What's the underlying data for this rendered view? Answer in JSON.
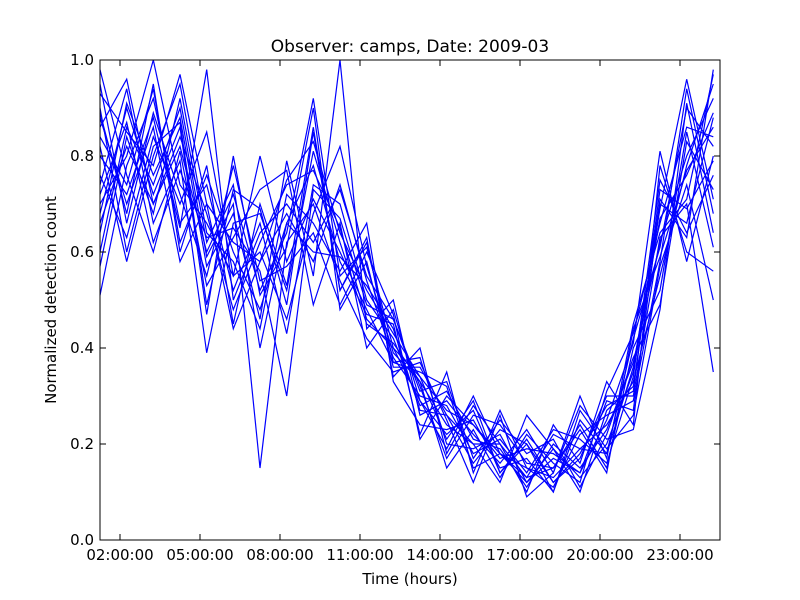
{
  "chart_data": {
    "type": "line",
    "title": "Observer: camps, Date: 2009-03",
    "xlabel": "Time (hours)",
    "ylabel": "Normalized detection count",
    "xlim": [
      1.25,
      24.5
    ],
    "ylim": [
      0.0,
      1.0
    ],
    "x_ticks": [
      2,
      5,
      8,
      11,
      14,
      17,
      20,
      23
    ],
    "x_tick_labels": [
      "02:00:00",
      "05:00:00",
      "08:00:00",
      "11:00:00",
      "14:00:00",
      "17:00:00",
      "20:00:00",
      "23:00:00"
    ],
    "y_ticks": [
      0.0,
      0.2,
      0.4,
      0.6,
      0.8,
      1.0
    ],
    "y_tick_labels": [
      "0.0",
      "0.2",
      "0.4",
      "0.6",
      "0.8",
      "1.0"
    ],
    "line_color": "#0000ff",
    "grid": false,
    "x": [
      1.25,
      2.25,
      3.25,
      4.25,
      5.25,
      6.25,
      7.25,
      8.25,
      9.25,
      10.25,
      11.25,
      12.25,
      13.25,
      14.25,
      15.25,
      16.25,
      17.25,
      18.25,
      19.25,
      20.25,
      21.25,
      22.25,
      23.25,
      24.25
    ],
    "series": [
      {
        "values": [
          0.93,
          0.85,
          0.78,
          0.97,
          0.7,
          0.62,
          0.58,
          0.75,
          0.83,
          0.64,
          0.52,
          0.43,
          0.34,
          0.27,
          0.24,
          0.18,
          0.15,
          0.13,
          0.19,
          0.24,
          0.33,
          0.55,
          0.78,
          0.95
        ]
      },
      {
        "values": [
          0.86,
          0.96,
          0.7,
          0.82,
          0.6,
          0.72,
          0.52,
          0.64,
          0.92,
          0.55,
          0.61,
          0.4,
          0.29,
          0.22,
          0.27,
          0.14,
          0.2,
          0.1,
          0.25,
          0.18,
          0.42,
          0.61,
          0.9,
          0.82
        ]
      },
      {
        "values": [
          0.7,
          0.8,
          1.0,
          0.74,
          0.66,
          0.55,
          0.8,
          0.58,
          0.71,
          0.6,
          0.48,
          0.37,
          0.38,
          0.2,
          0.19,
          0.22,
          0.12,
          0.17,
          0.14,
          0.29,
          0.27,
          0.7,
          0.66,
          0.88
        ]
      },
      {
        "values": [
          0.8,
          0.72,
          0.88,
          0.65,
          0.98,
          0.5,
          0.64,
          0.7,
          0.62,
          0.73,
          0.55,
          0.46,
          0.31,
          0.33,
          0.17,
          0.25,
          0.18,
          0.21,
          0.11,
          0.22,
          0.38,
          0.49,
          0.83,
          0.73
        ]
      },
      {
        "values": [
          0.64,
          0.91,
          0.76,
          0.88,
          0.57,
          0.68,
          0.46,
          0.79,
          0.55,
          1.0,
          0.44,
          0.5,
          0.26,
          0.29,
          0.22,
          0.16,
          0.23,
          0.14,
          0.3,
          0.17,
          0.45,
          0.64,
          0.71,
          0.97
        ]
      },
      {
        "values": [
          0.89,
          0.68,
          0.95,
          0.6,
          0.78,
          0.45,
          0.7,
          0.53,
          0.86,
          0.52,
          0.63,
          0.34,
          0.4,
          0.18,
          0.28,
          0.2,
          0.1,
          0.24,
          0.16,
          0.33,
          0.24,
          0.78,
          0.6,
          0.56
        ]
      },
      {
        "values": [
          0.57,
          0.84,
          0.68,
          0.92,
          0.62,
          0.74,
          0.4,
          0.66,
          0.78,
          0.58,
          0.47,
          0.45,
          0.22,
          0.35,
          0.14,
          0.27,
          0.15,
          0.11,
          0.22,
          0.26,
          0.29,
          0.58,
          0.94,
          0.68
        ]
      },
      {
        "values": [
          0.76,
          0.63,
          0.84,
          0.7,
          0.85,
          0.55,
          0.6,
          0.46,
          0.68,
          0.82,
          0.57,
          0.39,
          0.33,
          0.24,
          0.2,
          0.12,
          0.26,
          0.19,
          0.13,
          0.2,
          0.35,
          0.67,
          0.76,
          0.89
        ]
      },
      {
        "values": [
          0.98,
          0.76,
          0.6,
          0.81,
          0.53,
          0.63,
          0.73,
          0.77,
          0.49,
          0.66,
          0.4,
          0.48,
          0.29,
          0.19,
          0.3,
          0.18,
          0.13,
          0.15,
          0.24,
          0.15,
          0.4,
          0.52,
          0.85,
          0.61
        ]
      },
      {
        "values": [
          0.68,
          0.9,
          0.72,
          0.86,
          0.47,
          0.8,
          0.51,
          0.61,
          0.9,
          0.48,
          0.58,
          0.36,
          0.36,
          0.26,
          0.16,
          0.23,
          0.2,
          0.12,
          0.18,
          0.28,
          0.31,
          0.73,
          0.69,
          0.79
        ]
      },
      {
        "values": [
          0.51,
          0.78,
          0.92,
          0.66,
          0.74,
          0.52,
          0.66,
          0.43,
          0.74,
          0.7,
          0.5,
          0.42,
          0.28,
          0.31,
          0.21,
          0.19,
          0.11,
          0.2,
          0.15,
          0.23,
          0.37,
          0.62,
          0.8,
          0.92
        ]
      },
      {
        "values": [
          0.82,
          0.58,
          0.8,
          0.95,
          0.64,
          0.58,
          0.44,
          0.72,
          0.66,
          0.56,
          0.66,
          0.33,
          0.24,
          0.23,
          0.25,
          0.15,
          0.17,
          0.1,
          0.27,
          0.19,
          0.26,
          0.57,
          0.74,
          0.5
        ]
      },
      {
        "values": [
          0.74,
          0.94,
          0.66,
          0.79,
          0.39,
          0.66,
          0.68,
          0.52,
          0.81,
          0.62,
          0.45,
          0.41,
          0.33,
          0.15,
          0.23,
          0.13,
          0.22,
          0.16,
          0.12,
          0.31,
          0.43,
          0.66,
          0.86,
          0.84
        ]
      },
      {
        "values": [
          0.88,
          0.7,
          0.86,
          0.58,
          0.7,
          0.44,
          0.58,
          0.68,
          0.58,
          0.74,
          0.54,
          0.38,
          0.3,
          0.28,
          0.18,
          0.21,
          0.14,
          0.23,
          0.21,
          0.16,
          0.34,
          0.75,
          0.64,
          0.76
        ]
      },
      {
        "values": [
          0.6,
          0.86,
          0.74,
          0.9,
          0.59,
          0.7,
          0.15,
          0.62,
          0.7,
          0.54,
          0.42,
          0.35,
          0.37,
          0.25,
          0.12,
          0.26,
          0.09,
          0.14,
          0.28,
          0.21,
          0.23,
          0.48,
          0.91,
          0.64
        ]
      },
      {
        "values": [
          0.95,
          0.66,
          0.89,
          0.72,
          0.55,
          0.78,
          0.54,
          0.57,
          0.64,
          0.49,
          0.6,
          0.47,
          0.21,
          0.3,
          0.24,
          0.17,
          0.19,
          0.18,
          0.14,
          0.25,
          0.41,
          0.81,
          0.58,
          0.8
        ]
      },
      {
        "values": [
          0.66,
          0.82,
          0.7,
          0.84,
          0.68,
          0.48,
          0.62,
          0.74,
          0.77,
          0.65,
          0.46,
          0.4,
          0.34,
          0.21,
          0.29,
          0.14,
          0.21,
          0.12,
          0.17,
          0.3,
          0.3,
          0.63,
          0.7,
          0.35
        ]
      },
      {
        "values": [
          0.84,
          0.74,
          0.94,
          0.62,
          0.76,
          0.6,
          0.48,
          0.66,
          0.6,
          0.59,
          0.53,
          0.44,
          0.27,
          0.26,
          0.2,
          0.2,
          0.13,
          0.22,
          0.19,
          0.18,
          0.36,
          0.69,
          0.96,
          0.71
        ]
      },
      {
        "values": [
          0.72,
          0.87,
          0.62,
          0.77,
          0.63,
          0.65,
          0.56,
          0.3,
          0.73,
          0.67,
          0.49,
          0.46,
          0.32,
          0.17,
          0.26,
          0.24,
          0.16,
          0.15,
          0.23,
          0.14,
          0.44,
          0.59,
          0.77,
          0.86
        ]
      },
      {
        "values": [
          0.9,
          0.6,
          0.82,
          0.87,
          0.49,
          0.73,
          0.69,
          0.49,
          0.85,
          0.52,
          0.62,
          0.37,
          0.35,
          0.32,
          0.15,
          0.18,
          0.12,
          0.19,
          0.1,
          0.27,
          0.32,
          0.71,
          0.63,
          0.98
        ]
      }
    ]
  }
}
